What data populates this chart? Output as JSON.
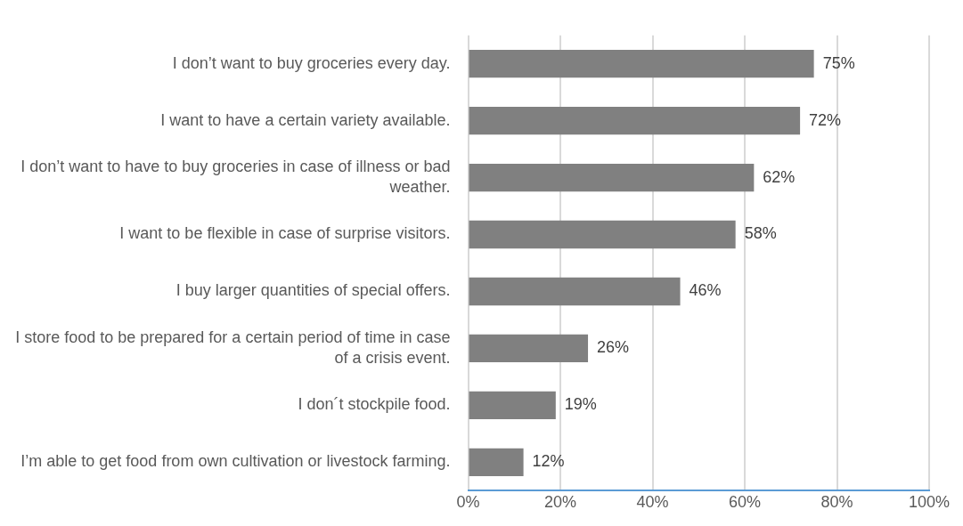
{
  "chart_data": {
    "type": "bar",
    "orientation": "horizontal",
    "categories": [
      "I don’t want to buy groceries every day.",
      "I want to have a certain variety available.",
      "I don’t want to have to buy groceries in case of illness or bad weather.",
      "I want to be flexible in case of surprise visitors.",
      "I buy larger quantities of special offers.",
      "I store food to be prepared for a certain period of time in case of a crisis event.",
      "I don´t stockpile food.",
      "I’m able to get food from own cultivation or livestock farming."
    ],
    "values": [
      75,
      72,
      62,
      58,
      46,
      26,
      19,
      12
    ],
    "value_labels": [
      "75%",
      "72%",
      "62%",
      "58%",
      "46%",
      "26%",
      "19%",
      "12%"
    ],
    "color": "#808080",
    "xlim": [
      0,
      100
    ],
    "xticks": [
      {
        "value": 0,
        "label": "0%"
      },
      {
        "value": 20,
        "label": "20%"
      },
      {
        "value": 40,
        "label": "40%"
      },
      {
        "value": 60,
        "label": "60%"
      },
      {
        "value": 80,
        "label": "80%"
      },
      {
        "value": 100,
        "label": "100%"
      }
    ],
    "grid": "x",
    "legend": false
  }
}
